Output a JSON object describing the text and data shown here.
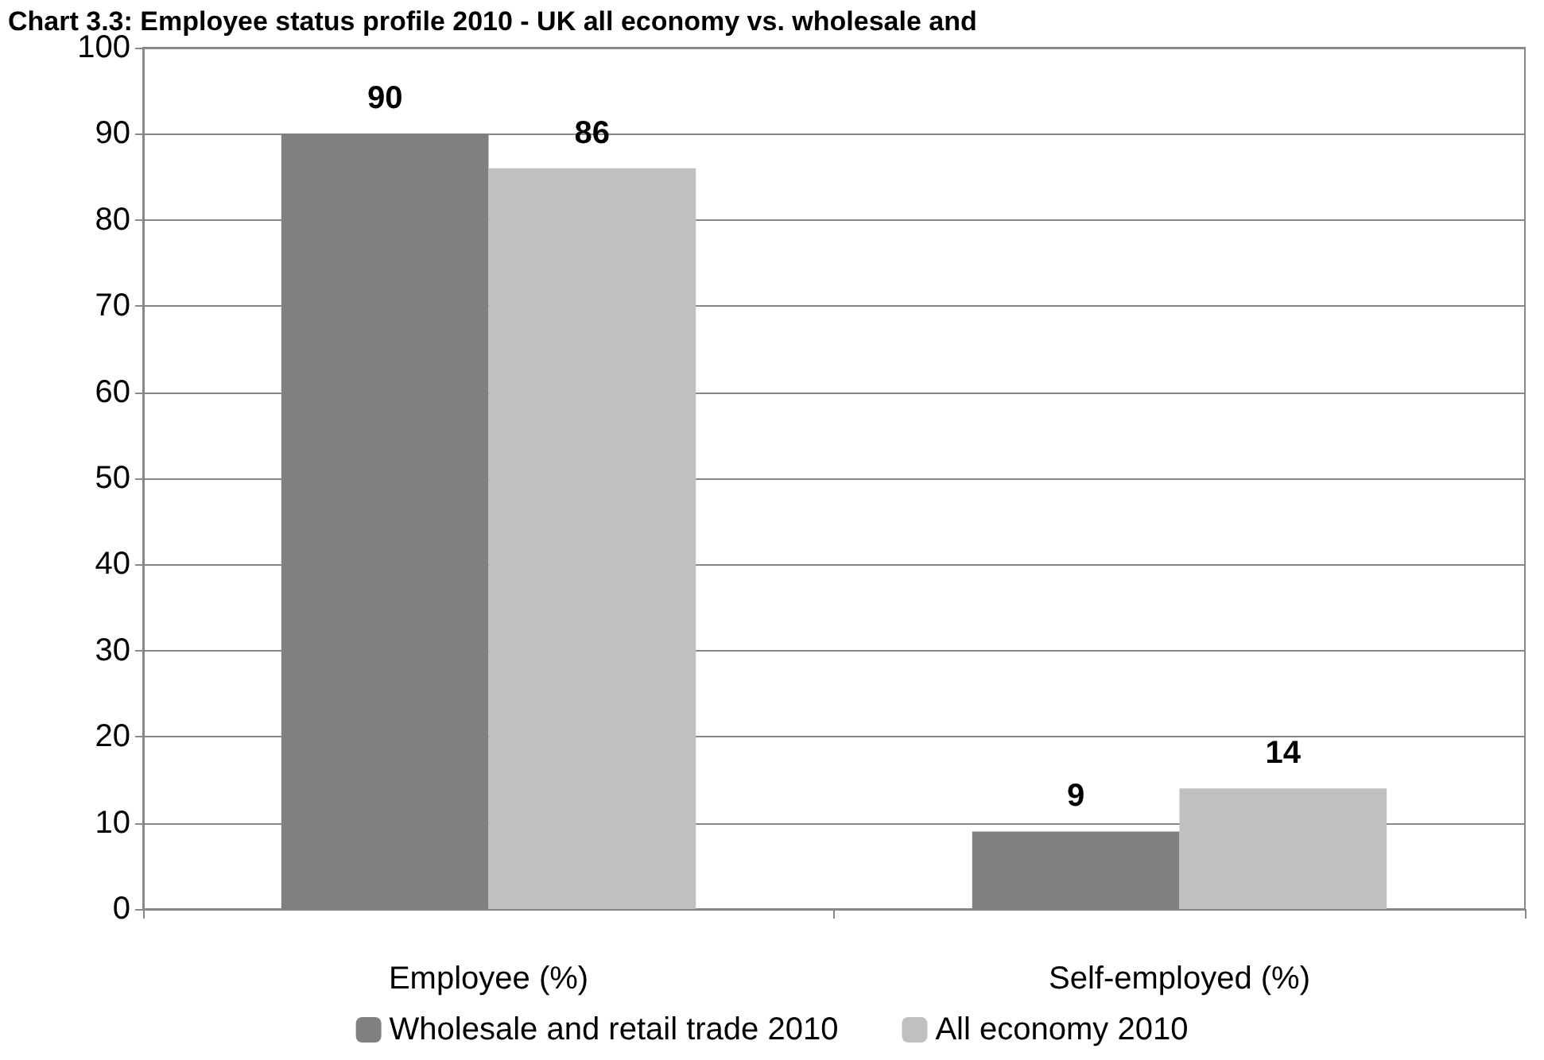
{
  "chart_data": {
    "type": "bar",
    "title": "Chart 3.3: Employee status profile 2010 - UK all economy vs. wholesale and",
    "categories": [
      "Employee (%)",
      "Self-employed (%)"
    ],
    "series": [
      {
        "name": "Wholesale and retail trade 2010",
        "color": "#808080",
        "values": [
          90,
          9
        ]
      },
      {
        "name": "All economy 2010",
        "color": "#c0c0c0",
        "values": [
          86,
          14
        ]
      }
    ],
    "ylim": [
      0,
      100
    ],
    "yticks": [
      0,
      10,
      20,
      30,
      40,
      50,
      60,
      70,
      80,
      90,
      100
    ],
    "grid": "y",
    "legend": "bottom",
    "data_labels": true
  }
}
